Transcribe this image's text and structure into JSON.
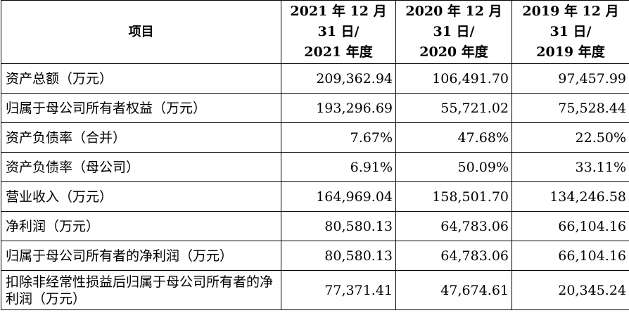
{
  "table": {
    "headers": {
      "item": "项目",
      "col1": [
        "2021 年 12 月",
        "31 日/",
        "2021 年度"
      ],
      "col2": [
        "2020 年 12 月",
        "31 日/",
        "2020 年度"
      ],
      "col3": [
        "2019 年 12 月",
        "31 日/",
        "2019 年度"
      ]
    },
    "rows": [
      {
        "label": "资产总额（万元）",
        "v2021": "209,362.94",
        "v2020": "106,491.70",
        "v2019": "97,457.99"
      },
      {
        "label": "归属于母公司所有者权益（万元）",
        "v2021": "193,296.69",
        "v2020": "55,721.02",
        "v2019": "75,528.44"
      },
      {
        "label": "资产负债率（合并）",
        "v2021": "7.67%",
        "v2020": "47.68%",
        "v2019": "22.50%"
      },
      {
        "label": "资产负债率（母公司）",
        "v2021": "6.91%",
        "v2020": "50.09%",
        "v2019": "33.11%"
      },
      {
        "label": "营业收入（万元）",
        "v2021": "164,969.04",
        "v2020": "158,501.70",
        "v2019": "134,246.58"
      },
      {
        "label": "净利润（万元）",
        "v2021": "80,580.13",
        "v2020": "64,783.06",
        "v2019": "66,104.16"
      },
      {
        "label": "归属于母公司所有者的净利润（万元）",
        "v2021": "80,580.13",
        "v2020": "64,783.06",
        "v2019": "66,104.16"
      },
      {
        "label": "扣除非经常性损益后归属于母公司所有者的净利润（万元）",
        "v2021": "77,371.41",
        "v2020": "47,674.61",
        "v2019": "20,345.24"
      }
    ]
  }
}
